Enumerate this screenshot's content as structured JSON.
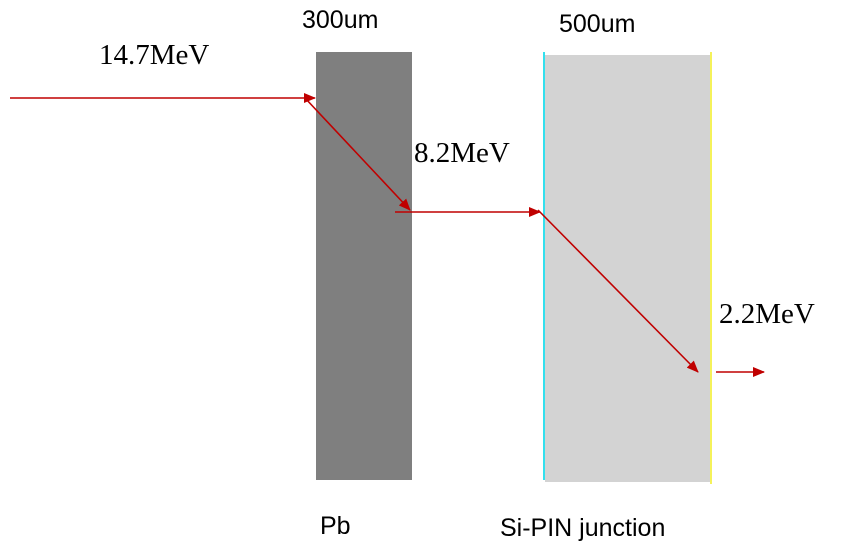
{
  "layers": {
    "pb": {
      "thickness_label": "300um",
      "material_label": "Pb",
      "fill_color": "#7f7f7f"
    },
    "si_pin": {
      "thickness_label": "500um",
      "material_label": "Si-PIN junction",
      "fill_color": "#d3d3d3",
      "front_edge_color": "#33e0ee",
      "back_edge_color": "#f5f25a"
    }
  },
  "energies": {
    "incident": "14.7MeV",
    "after_pb": "8.2MeV",
    "exit": "2.2MeV"
  },
  "arrow_color": "#c00000"
}
